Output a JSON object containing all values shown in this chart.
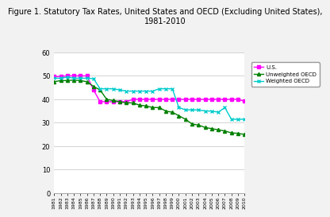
{
  "title": "Figure 1. Statutory Tax Rates, United States and OECD (Excluding United States),\n1981-2010",
  "years": [
    1981,
    1982,
    1983,
    1984,
    1985,
    1986,
    1987,
    1988,
    1989,
    1990,
    1991,
    1992,
    1993,
    1994,
    1995,
    1996,
    1997,
    1998,
    1999,
    2000,
    2001,
    2002,
    2003,
    2004,
    2005,
    2006,
    2007,
    2008,
    2009,
    2010
  ],
  "us": [
    49.7,
    49.7,
    50.0,
    50.0,
    50.0,
    50.0,
    44.0,
    39.0,
    39.0,
    39.0,
    39.0,
    39.0,
    40.0,
    40.0,
    40.0,
    40.0,
    40.0,
    40.0,
    40.0,
    40.0,
    40.0,
    40.0,
    40.0,
    40.0,
    40.0,
    40.0,
    40.0,
    40.0,
    40.0,
    39.2
  ],
  "unweighted_oecd": [
    47.5,
    48.0,
    48.0,
    48.2,
    48.0,
    47.5,
    45.5,
    44.0,
    40.0,
    39.5,
    39.0,
    38.5,
    38.5,
    37.5,
    37.2,
    36.5,
    36.5,
    35.0,
    34.5,
    33.0,
    31.5,
    29.5,
    29.0,
    28.0,
    27.5,
    27.0,
    26.5,
    25.7,
    25.5,
    25.0
  ],
  "weighted_oecd": [
    49.0,
    49.0,
    49.5,
    49.0,
    49.0,
    49.0,
    48.8,
    44.5,
    44.5,
    44.5,
    44.0,
    43.5,
    43.5,
    43.5,
    43.5,
    43.5,
    44.5,
    44.5,
    44.5,
    36.5,
    35.5,
    35.5,
    35.5,
    35.0,
    35.0,
    34.5,
    36.5,
    31.5,
    31.5,
    31.5
  ],
  "us_color": "#ff00ff",
  "unweighted_color": "#008000",
  "weighted_color": "#00cccc",
  "ylim": [
    0,
    60
  ],
  "yticks": [
    0,
    10,
    20,
    30,
    40,
    50,
    60
  ],
  "legend_labels": [
    "U.S.",
    "Unweighted OECD",
    "Weighted OECD"
  ],
  "bg_color": "#f2f2f2",
  "plot_bg": "#ffffff"
}
